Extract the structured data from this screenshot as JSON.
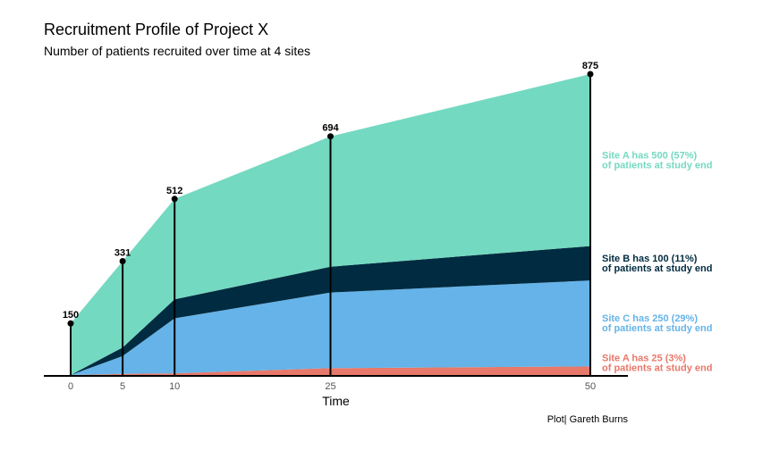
{
  "chart_data": {
    "type": "area",
    "title": "Recruitment Profile of Project X",
    "subtitle": "Number of patients recruited over time at 4 sites",
    "xlabel": "Time",
    "ylabel": "",
    "x": [
      0,
      5,
      10,
      25,
      50
    ],
    "xlim": [
      0,
      50
    ],
    "ylim": [
      0,
      875
    ],
    "x_ticks": [
      "0",
      "5",
      "10",
      "25",
      "50"
    ],
    "stacked": true,
    "series": [
      {
        "color": "#E8786A",
        "values": [
          0,
          3,
          5,
          20,
          25
        ]
      },
      {
        "color": "#65B3E8",
        "values": [
          0,
          52,
          160,
          220,
          250
        ]
      },
      {
        "color": "#002B40",
        "values": [
          0,
          25,
          55,
          75,
          100
        ]
      },
      {
        "color": "#74D9C1",
        "values": [
          150,
          251,
          292,
          379,
          500
        ]
      }
    ],
    "totals": [
      150,
      331,
      512,
      694,
      875
    ],
    "total_labels": [
      "150",
      "331",
      "512",
      "694",
      "875"
    ],
    "annotations": [
      {
        "line1": "Site A has 500 (57%)",
        "line2": "of patients at study end",
        "color": "#74D9C1",
        "series_index": 3
      },
      {
        "line1": "Site B has 100 (11%)",
        "line2": "of patients at study end",
        "color": "#002B40",
        "series_index": 2
      },
      {
        "line1": "Site C has 250 (29%)",
        "line2": "of patients at study end",
        "color": "#65B3E8",
        "series_index": 1
      },
      {
        "line1": "Site A has 25 (3%)",
        "line2": "of patients at study end",
        "color": "#E8786A",
        "series_index": 0
      }
    ],
    "caption": "Plot| Gareth Burns",
    "grid": false,
    "legend": "none"
  }
}
